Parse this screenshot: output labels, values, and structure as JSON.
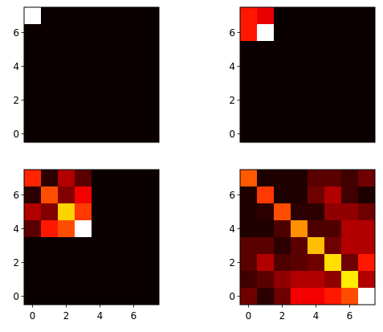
{
  "chart_data": [
    {
      "type": "heatmap",
      "colormap": "hot",
      "grid": false,
      "xticks": [
        0,
        2,
        4,
        6
      ],
      "yticks": [
        0,
        2,
        4,
        6
      ],
      "xtick_labels": [
        "0",
        "2",
        "4",
        "6"
      ],
      "ytick_labels": [
        "0",
        "2",
        "4",
        "6"
      ],
      "show_xticks": false,
      "xlim": [
        -0.5,
        7.5
      ],
      "ylim": [
        7.5,
        -0.5
      ],
      "values": [
        [
          1.0,
          0.0,
          0.0,
          0.0,
          0.0,
          0.0,
          0.0,
          0.0
        ],
        [
          0.0,
          0.0,
          0.0,
          0.0,
          0.0,
          0.0,
          0.0,
          0.0
        ],
        [
          0.0,
          0.0,
          0.0,
          0.0,
          0.0,
          0.0,
          0.0,
          0.0
        ],
        [
          0.0,
          0.0,
          0.0,
          0.0,
          0.0,
          0.0,
          0.0,
          0.0
        ],
        [
          0.0,
          0.0,
          0.0,
          0.0,
          0.0,
          0.0,
          0.0,
          0.0
        ],
        [
          0.0,
          0.0,
          0.0,
          0.0,
          0.0,
          0.0,
          0.0,
          0.0
        ],
        [
          0.0,
          0.0,
          0.0,
          0.0,
          0.0,
          0.0,
          0.0,
          0.0
        ],
        [
          0.0,
          0.0,
          0.0,
          0.0,
          0.0,
          0.0,
          0.0,
          0.0
        ]
      ]
    },
    {
      "type": "heatmap",
      "colormap": "hot",
      "grid": false,
      "xticks": [
        0,
        2,
        4,
        6
      ],
      "yticks": [
        0,
        2,
        4,
        6
      ],
      "xtick_labels": [
        "0",
        "2",
        "4",
        "6"
      ],
      "ytick_labels": [
        "0",
        "2",
        "4",
        "6"
      ],
      "show_xticks": false,
      "xlim": [
        -0.5,
        7.5
      ],
      "ylim": [
        7.5,
        -0.5
      ],
      "values": [
        [
          0.4,
          0.33,
          0.0,
          0.0,
          0.0,
          0.0,
          0.0,
          0.0
        ],
        [
          0.4,
          1.0,
          0.0,
          0.0,
          0.0,
          0.0,
          0.0,
          0.0
        ],
        [
          0.0,
          0.0,
          0.0,
          0.0,
          0.0,
          0.0,
          0.0,
          0.0
        ],
        [
          0.0,
          0.0,
          0.0,
          0.0,
          0.0,
          0.0,
          0.0,
          0.0
        ],
        [
          0.0,
          0.0,
          0.0,
          0.0,
          0.0,
          0.0,
          0.0,
          0.0
        ],
        [
          0.0,
          0.0,
          0.0,
          0.0,
          0.0,
          0.0,
          0.0,
          0.0
        ],
        [
          0.0,
          0.0,
          0.0,
          0.0,
          0.0,
          0.0,
          0.0,
          0.0
        ],
        [
          0.0,
          0.0,
          0.0,
          0.0,
          0.0,
          0.0,
          0.0,
          0.0
        ]
      ]
    },
    {
      "type": "heatmap",
      "colormap": "hot",
      "grid": false,
      "xticks": [
        0,
        2,
        4,
        6
      ],
      "yticks": [
        0,
        2,
        4,
        6
      ],
      "xtick_labels": [
        "0",
        "2",
        "4",
        "6"
      ],
      "ytick_labels": [
        "0",
        "2",
        "4",
        "6"
      ],
      "show_xticks": true,
      "xlim": [
        -0.5,
        7.5
      ],
      "ylim": [
        7.5,
        -0.5
      ],
      "values": [
        [
          0.42,
          0.05,
          0.25,
          0.12,
          0.0,
          0.0,
          0.0,
          0.0
        ],
        [
          0.05,
          0.48,
          0.18,
          0.35,
          0.0,
          0.0,
          0.0,
          0.0
        ],
        [
          0.25,
          0.18,
          0.68,
          0.45,
          0.0,
          0.0,
          0.0,
          0.0
        ],
        [
          0.12,
          0.4,
          0.48,
          1.0,
          0.0,
          0.0,
          0.0,
          0.0
        ],
        [
          0.0,
          0.0,
          0.0,
          0.0,
          0.0,
          0.0,
          0.0,
          0.0
        ],
        [
          0.0,
          0.0,
          0.0,
          0.0,
          0.0,
          0.0,
          0.0,
          0.0
        ],
        [
          0.0,
          0.0,
          0.0,
          0.0,
          0.0,
          0.0,
          0.0,
          0.0
        ],
        [
          0.0,
          0.0,
          0.0,
          0.0,
          0.0,
          0.0,
          0.0,
          0.0
        ]
      ]
    },
    {
      "type": "heatmap",
      "colormap": "hot",
      "grid": false,
      "xticks": [
        0,
        2,
        4,
        6
      ],
      "yticks": [
        0,
        2,
        4,
        6
      ],
      "xtick_labels": [
        "0",
        "2",
        "4",
        "6"
      ],
      "ytick_labels": [
        "0",
        "2",
        "4",
        "6"
      ],
      "show_xticks": true,
      "xlim": [
        -0.5,
        7.5
      ],
      "ylim": [
        7.5,
        -0.5
      ],
      "values": [
        [
          0.5,
          0.03,
          0.03,
          0.03,
          0.12,
          0.12,
          0.08,
          0.15
        ],
        [
          0.03,
          0.45,
          0.03,
          0.03,
          0.15,
          0.25,
          0.08,
          0.03
        ],
        [
          0.03,
          0.05,
          0.48,
          0.05,
          0.05,
          0.2,
          0.2,
          0.15
        ],
        [
          0.03,
          0.03,
          0.1,
          0.58,
          0.1,
          0.1,
          0.25,
          0.25
        ],
        [
          0.12,
          0.12,
          0.05,
          0.12,
          0.65,
          0.15,
          0.25,
          0.25
        ],
        [
          0.12,
          0.25,
          0.1,
          0.12,
          0.15,
          0.7,
          0.15,
          0.4
        ],
        [
          0.08,
          0.12,
          0.2,
          0.25,
          0.25,
          0.2,
          0.72,
          0.25
        ],
        [
          0.15,
          0.05,
          0.15,
          0.35,
          0.35,
          0.4,
          0.48,
          1.0
        ]
      ]
    }
  ]
}
